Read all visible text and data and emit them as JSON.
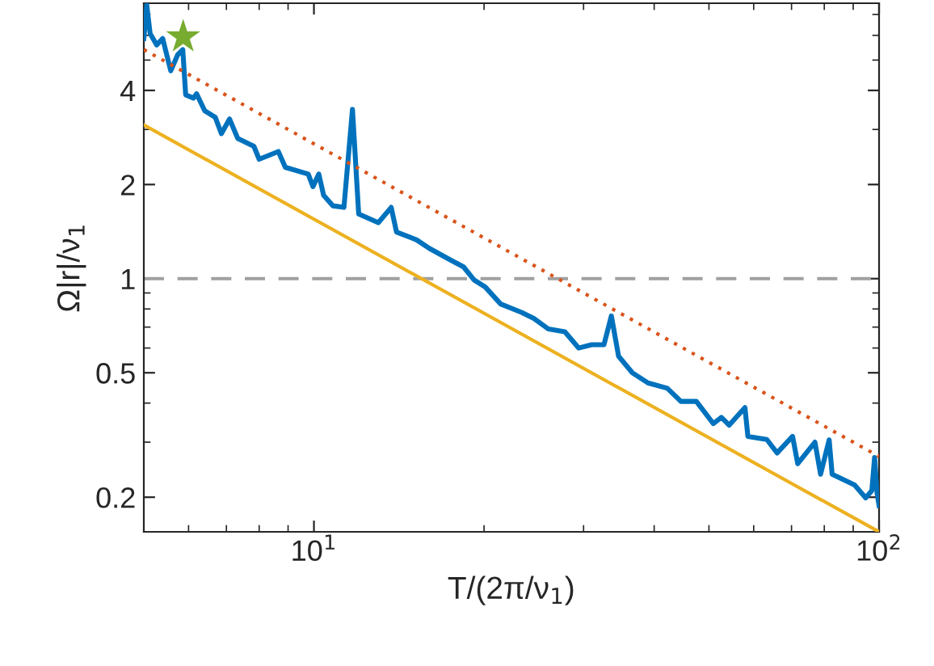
{
  "chart_data": {
    "type": "line",
    "xlabel": "T/(2π/ν$_{1}$)",
    "ylabel": "Ω|r|/ν$_{1}$",
    "log": "xy",
    "xlim": [
      5,
      100
    ],
    "ylim": [
      0.155,
      7.6
    ],
    "xticks": [
      {
        "value": 10,
        "label": "10$^{1}$"
      },
      {
        "value": 100,
        "label": "10$^{2}$"
      }
    ],
    "yticks": [
      0.2,
      0.5,
      1,
      2,
      4
    ],
    "grid": false,
    "legend": false,
    "ref_lines": [
      {
        "axis": "y",
        "value": 1,
        "color": "#a0a0a0",
        "line_style": "dashed"
      }
    ],
    "series": [
      {
        "color": "#0072bd",
        "line_style": "solid",
        "x": [
          5.0,
          5.06,
          5.13,
          5.27,
          5.4,
          5.58,
          5.74,
          5.86,
          5.93,
          6.12,
          6.2,
          6.41,
          6.69,
          6.86,
          7.09,
          7.33,
          7.83,
          8.0,
          8.65,
          8.9,
          9.77,
          9.96,
          10.2,
          10.4,
          10.8,
          11.3,
          11.7,
          12.0,
          13.0,
          13.7,
          14.0,
          15.2,
          16.0,
          17.4,
          18.4,
          19.2,
          20.1,
          21.4,
          23.3,
          24.5,
          26.0,
          27.8,
          29.4,
          31.0,
          32.6,
          33.6,
          34.6,
          36.6,
          39.0,
          42.2,
          44.6,
          47.5,
          50.9,
          52.6,
          54.3,
          57.9,
          58.6,
          63.3,
          66.0,
          70.3,
          71.8,
          77.0,
          78.8,
          81.6,
          82.6,
          90.5,
          94.7,
          97.1,
          98.2,
          99.2,
          100
        ],
        "values": [
          5.86,
          7.5,
          6.08,
          5.59,
          5.86,
          4.62,
          5.2,
          5.4,
          3.87,
          3.78,
          3.9,
          3.44,
          3.28,
          2.91,
          3.24,
          2.81,
          2.65,
          2.41,
          2.55,
          2.27,
          2.16,
          1.97,
          2.16,
          1.85,
          1.71,
          1.69,
          3.48,
          1.61,
          1.51,
          1.69,
          1.41,
          1.33,
          1.25,
          1.15,
          1.09,
          0.99,
          0.94,
          0.83,
          0.78,
          0.746,
          0.69,
          0.676,
          0.6,
          0.615,
          0.615,
          0.76,
          0.565,
          0.5,
          0.464,
          0.446,
          0.405,
          0.405,
          0.344,
          0.36,
          0.34,
          0.387,
          0.313,
          0.306,
          0.277,
          0.313,
          0.256,
          0.3,
          0.237,
          0.305,
          0.237,
          0.219,
          0.199,
          0.21,
          0.268,
          0.206,
          0.188
        ]
      },
      {
        "color": "#d95319",
        "line_style": "dotted",
        "x": [
          5,
          100
        ],
        "values": [
          5.4,
          0.27
        ]
      },
      {
        "color": "#edb120",
        "line_style": "solid",
        "x": [
          5,
          100
        ],
        "values": [
          3.1,
          0.155
        ]
      },
      {
        "type": "scatter",
        "color": "#77ac30",
        "marker": "star",
        "x": [
          5.87
        ],
        "values": [
          5.93
        ]
      }
    ]
  }
}
